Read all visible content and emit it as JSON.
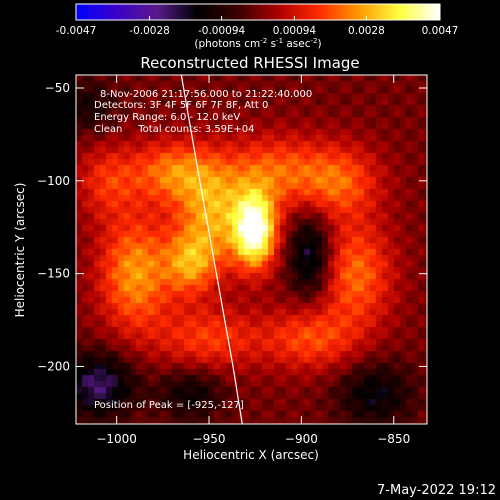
{
  "colorbar": {
    "tick_labels": [
      "-0.0047",
      "-0.0028",
      "-0.00094",
      "0.00094",
      "0.0028",
      "0.0047"
    ],
    "tick_values": [
      -0.0047,
      -0.0028,
      -0.00094,
      0.00094,
      0.0028,
      0.0047
    ],
    "range": [
      -0.0047,
      0.0047
    ],
    "units_prefix": "(photons cm",
    "units_exp1": "-2",
    "units_mid": " s",
    "units_exp2": "-1",
    "units_mid2": " asec",
    "units_exp3": "-2",
    "units_suffix": ")",
    "colors": [
      "#0000ff",
      "#3a00c8",
      "#5a1a8a",
      "#000000",
      "#3a0000",
      "#aa0000",
      "#ff2a00",
      "#ff9a00",
      "#ffff40",
      "#ffffff"
    ]
  },
  "chart_data": {
    "type": "heatmap",
    "title": "Reconstructed RHESSI Image",
    "xlabel": "Heliocentric X (arcsec)",
    "ylabel": "Heliocentric Y (arcsec)",
    "xlim": [
      -1022,
      -832
    ],
    "ylim": [
      -231,
      -43
    ],
    "x_ticks": [
      -1000,
      -950,
      -900,
      -850
    ],
    "x_tick_labels": [
      "−1000",
      "−950",
      "−900",
      "−850"
    ],
    "y_ticks": [
      -50,
      -100,
      -150,
      -200
    ],
    "y_tick_labels": [
      "−50",
      "−100",
      "−150",
      "−200"
    ],
    "info_lines": [
      "8-Nov-2006 21:17:56.000 to 21:22:40.000",
      "Detectors: 3F 4F 5F 6F 7F 8F, Att 0",
      "Energy Range: 6.0 - 12.0 keV",
      "Clean     Total counts: 3.59E+04"
    ],
    "peak_label": "Position of Peak = [-925,-127]",
    "peak": [
      -925,
      -127
    ],
    "limb_points": [
      [
        -965,
        -43
      ],
      [
        -955,
        -100
      ],
      [
        -946,
        -150
      ],
      [
        -937,
        -200
      ],
      [
        -932,
        -231
      ]
    ],
    "value_range": [
      -0.0047,
      0.0047
    ],
    "sources": [
      {
        "x": -925,
        "y": -127,
        "sx": 8,
        "sy": 14,
        "amp": 1.0
      },
      {
        "x": -948,
        "y": -118,
        "sx": 14,
        "sy": 20,
        "amp": 0.55
      },
      {
        "x": -960,
        "y": -145,
        "sx": 10,
        "sy": 12,
        "amp": 0.45
      },
      {
        "x": -990,
        "y": -150,
        "sx": 14,
        "sy": 22,
        "amp": 0.55
      },
      {
        "x": -970,
        "y": -95,
        "sx": 16,
        "sy": 12,
        "amp": 0.45
      },
      {
        "x": -915,
        "y": -95,
        "sx": 18,
        "sy": 14,
        "amp": 0.4
      },
      {
        "x": -880,
        "y": -100,
        "sx": 16,
        "sy": 14,
        "amp": 0.42
      },
      {
        "x": -870,
        "y": -150,
        "sx": 14,
        "sy": 20,
        "amp": 0.45
      },
      {
        "x": -895,
        "y": -185,
        "sx": 18,
        "sy": 12,
        "amp": 0.38
      },
      {
        "x": -950,
        "y": -185,
        "sx": 20,
        "sy": 12,
        "amp": 0.35
      },
      {
        "x": -1005,
        "y": -100,
        "sx": 12,
        "sy": 14,
        "amp": 0.3
      },
      {
        "x": -1010,
        "y": -210,
        "sx": 14,
        "sy": 12,
        "amp": -0.5
      },
      {
        "x": -895,
        "y": -140,
        "sx": 8,
        "sy": 16,
        "amp": -0.45
      },
      {
        "x": -860,
        "y": -215,
        "sx": 14,
        "sy": 12,
        "amp": -0.35
      },
      {
        "x": -960,
        "y": -215,
        "sx": 12,
        "sy": 10,
        "amp": -0.3
      },
      {
        "x": -1015,
        "y": -60,
        "sx": 10,
        "sy": 10,
        "amp": -0.25
      }
    ]
  },
  "footer": {
    "timestamp": "7-May-2022 19:12"
  }
}
